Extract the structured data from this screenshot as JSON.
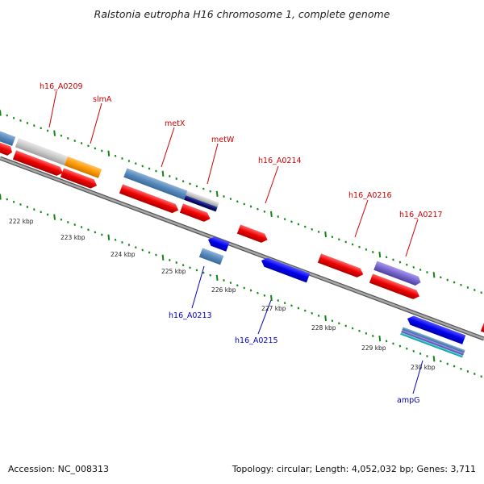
{
  "title": "Ralstonia eutropha H16 chromosome 1, complete genome",
  "footer": {
    "accession": "Accession: NC_008313",
    "topology": "Topology: circular; Length: 4,052,032 bp; Genes: 3,711"
  },
  "colors": {
    "forward_label": "#cc0000",
    "reverse_label": "#0000bb",
    "backbone": "#888888",
    "tick": "#118811"
  },
  "gene_labels_forward": [
    "h16_A0209",
    "slmA",
    "metX",
    "metW",
    "h16_A0214",
    "h16_A0216",
    "h16_A0217"
  ],
  "gene_labels_reverse": [
    "h16_A0213",
    "h16_A0215",
    "ampG"
  ],
  "scale_ticks": [
    "222 kbp",
    "223 kbp",
    "224 kbp",
    "225 kbp",
    "226 kbp",
    "227 kbp",
    "228 kbp",
    "229 kbp",
    "230 kbp"
  ]
}
